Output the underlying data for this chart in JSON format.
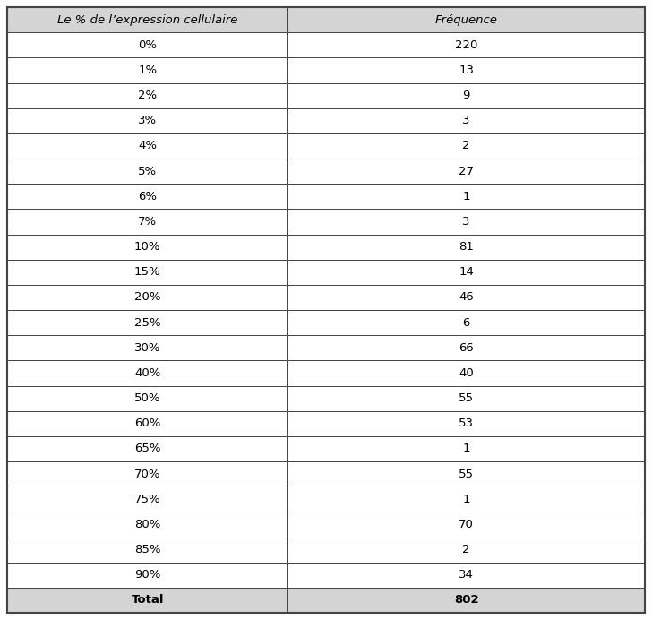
{
  "col1_header": "Le % de l’expression cellulaire",
  "col2_header": "Fréquence",
  "rows": [
    [
      "0%",
      "220"
    ],
    [
      "1%",
      "13"
    ],
    [
      "2%",
      "9"
    ],
    [
      "3%",
      "3"
    ],
    [
      "4%",
      "2"
    ],
    [
      "5%",
      "27"
    ],
    [
      "6%",
      "1"
    ],
    [
      "7%",
      "3"
    ],
    [
      "10%",
      "81"
    ],
    [
      "15%",
      "14"
    ],
    [
      "20%",
      "46"
    ],
    [
      "25%",
      "6"
    ],
    [
      "30%",
      "66"
    ],
    [
      "40%",
      "40"
    ],
    [
      "50%",
      "55"
    ],
    [
      "60%",
      "53"
    ],
    [
      "65%",
      "1"
    ],
    [
      "70%",
      "55"
    ],
    [
      "75%",
      "1"
    ],
    [
      "80%",
      "70"
    ],
    [
      "85%",
      "2"
    ],
    [
      "90%",
      "34"
    ],
    [
      "Total",
      "802"
    ]
  ],
  "header_bg": "#d4d4d4",
  "total_row_bg": "#d4d4d4",
  "cell_bg": "#ffffff",
  "border_color": "#444444",
  "text_color": "#000000",
  "header_fontsize": 9.5,
  "cell_fontsize": 9.5,
  "col_split": 0.44,
  "fig_width": 7.28,
  "fig_height": 6.92,
  "dpi": 100
}
